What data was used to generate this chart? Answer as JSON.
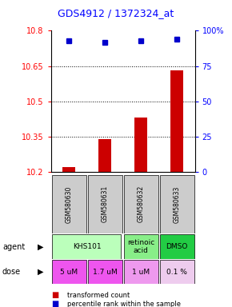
{
  "title": "GDS4912 / 1372324_at",
  "samples": [
    "GSM580630",
    "GSM580631",
    "GSM580632",
    "GSM580633"
  ],
  "bar_values": [
    10.22,
    10.34,
    10.43,
    10.63
  ],
  "blue_values": [
    93,
    92,
    93,
    94
  ],
  "ylim_left": [
    10.2,
    10.8
  ],
  "ylim_right": [
    0,
    100
  ],
  "yticks_left": [
    10.2,
    10.35,
    10.5,
    10.65,
    10.8
  ],
  "ytick_labels_left": [
    "10.2",
    "10.35",
    "10.5",
    "10.65",
    "10.8"
  ],
  "yticks_right": [
    0,
    25,
    50,
    75,
    100
  ],
  "ytick_labels_right": [
    "0",
    "25",
    "50",
    "75",
    "100%"
  ],
  "bar_color": "#cc0000",
  "blue_color": "#0000cc",
  "bar_bottom": 10.2,
  "agent_spans": [
    [
      0,
      1,
      "KHS101",
      "#bbffbb"
    ],
    [
      2,
      2,
      "retinoic\nacid",
      "#88ee88"
    ],
    [
      3,
      3,
      "DMSO",
      "#22cc44"
    ]
  ],
  "dose_cells": [
    [
      0,
      "5 uM",
      "#ee55ee"
    ],
    [
      1,
      "1.7 uM",
      "#ee55ee"
    ],
    [
      2,
      "1 uM",
      "#ee99ee"
    ],
    [
      3,
      "0.1 %",
      "#eeccee"
    ]
  ],
  "sample_bg": "#cccccc",
  "legend_bar_label": "transformed count",
  "legend_blue_label": "percentile rank within the sample"
}
